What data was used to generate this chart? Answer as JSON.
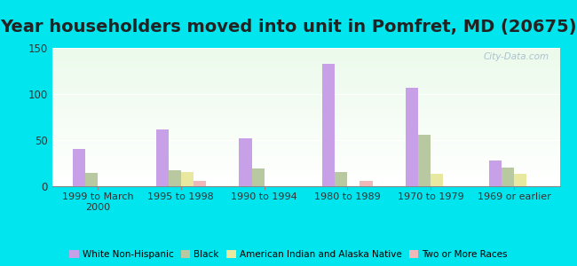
{
  "title": "Year householders moved into unit in Pomfret, MD (20675)",
  "categories": [
    "1999 to March\n2000",
    "1995 to 1998",
    "1990 to 1994",
    "1980 to 1989",
    "1970 to 1979",
    "1969 or earlier"
  ],
  "series": {
    "White Non-Hispanic": [
      40,
      62,
      52,
      133,
      107,
      28
    ],
    "Black": [
      14,
      17,
      19,
      15,
      56,
      20
    ],
    "American Indian and Alaska Native": [
      0,
      15,
      0,
      0,
      13,
      13
    ],
    "Two or More Races": [
      0,
      6,
      0,
      6,
      0,
      0
    ]
  },
  "colors": {
    "White Non-Hispanic": "#c8a0e8",
    "Black": "#b8c8a0",
    "American Indian and Alaska Native": "#e8e8a0",
    "Two or More Races": "#f0b8b8"
  },
  "bar_width": 0.15,
  "ylim": [
    0,
    150
  ],
  "yticks": [
    0,
    50,
    100,
    150
  ],
  "background_color": "#00e5ee",
  "title_fontsize": 14,
  "watermark": "City-Data.com"
}
